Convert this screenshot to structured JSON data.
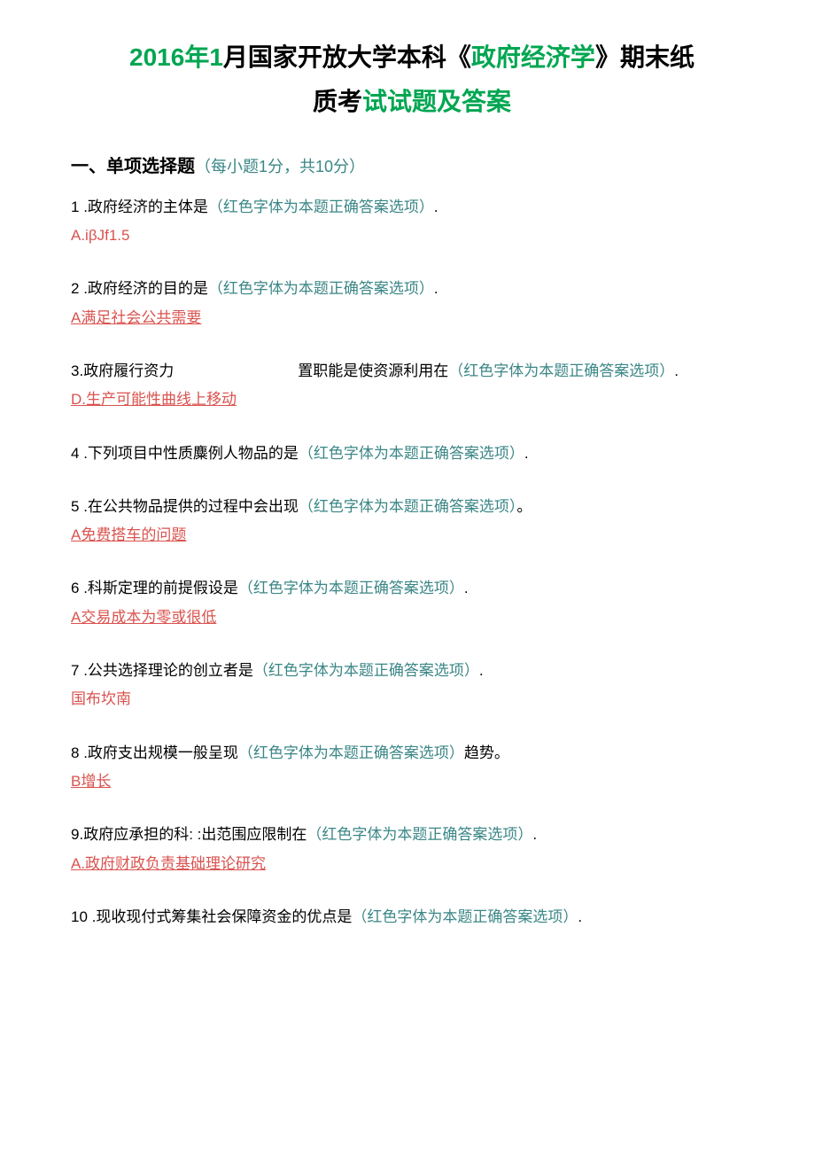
{
  "title": {
    "part1_green": "2016年1",
    "part2_black": "月国家开放大学本科《",
    "part3_green": "政府经济学",
    "part4_black": "》期末纸",
    "line2_black": "质考",
    "line2_green": "试试题",
    "line2_end": "及答案"
  },
  "section": {
    "prefix": "一、",
    "label": "单项选择题",
    "note": "（每小题1分，共10分）"
  },
  "questions": [
    {
      "num": "1",
      "text": " .政府经济的主体是",
      "hint": "（红色字体为本题正确答案选项）",
      "suffix": ".",
      "answer": "A.iβJf1.5",
      "underline": false
    },
    {
      "num": "2",
      "text": " .政府经济的目的是",
      "hint": "（红色字体为本题正确答案选项）",
      "suffix": ".",
      "answer": "A满足社会公共需要",
      "underline": true
    },
    {
      "num": "3",
      "text": ".政府履行资力",
      "text2": "置职能是使资源利用在",
      "hint": "（红色字体为本题正确答案选项）",
      "suffix": ".",
      "answer": "D.生产可能性曲线上移动",
      "underline": true,
      "split": true
    },
    {
      "num": "4",
      "text": " .下列项目中性质麋例人物品的是",
      "hint": "（红色字体为本题正确答案选项）",
      "suffix": ".",
      "answer": "",
      "underline": false
    },
    {
      "num": "5",
      "text": " .在公共物品提供的过程中会出现",
      "hint": "（红色字体为本题正确答案选项）",
      "suffix": "。",
      "answer": "A免费搭车的问题",
      "underline": true
    },
    {
      "num": "6",
      "text": " .科斯定理的前提假设是",
      "hint": "（红色字体为本题正确答案选项）",
      "suffix": ".",
      "answer": "A交易成本为零或很低",
      "underline": true
    },
    {
      "num": "7",
      "text": " .公共选择理论的创立者是",
      "hint": "（红色字体为本题正确答案选项）",
      "suffix": ".",
      "answer": "国布坎南",
      "underline": false
    },
    {
      "num": "8",
      "text": " .政府支出规模一般呈现",
      "hint": "（红色字体为本题正确答案选项）",
      "suffix": "趋势。",
      "answer": "B增长",
      "underline": true
    },
    {
      "num": "9",
      "text": ".政府应承担的科:         :出范围应限制在",
      "hint": "（红色字体为本题正确答案选项）",
      "suffix": ".",
      "answer": "A.政府财政负责基础理论研究",
      "underline": true,
      "nospace": true
    },
    {
      "num": "10",
      "text": " .现收现付式筹集社会保障资金的优点是",
      "hint": "（红色字体为本题正确答案选项）",
      "suffix": ".",
      "answer": "",
      "underline": false
    }
  ]
}
